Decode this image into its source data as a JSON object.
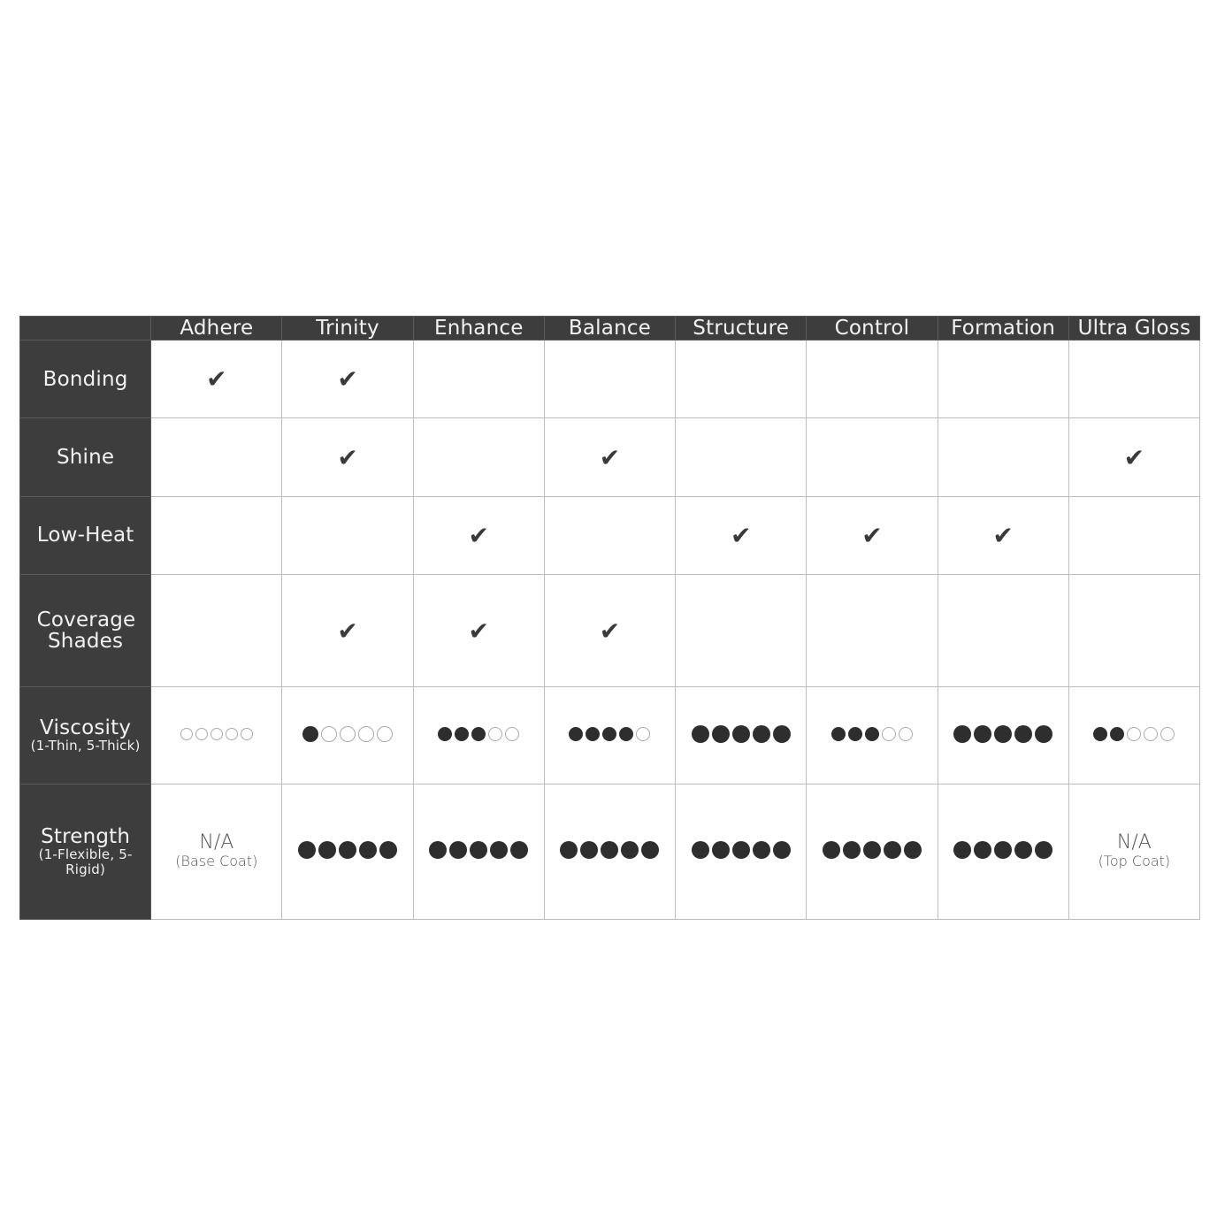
{
  "columns": [
    "Adhere",
    "Trinity",
    "Enhance",
    "Balance",
    "Structure",
    "Control",
    "Formation",
    "Ultra Gloss"
  ],
  "check_icon": "check-icon",
  "colors": {
    "header_bg": "#3d3d3d",
    "dot_filled": "#2e2e2e"
  },
  "rows": [
    {
      "label": "Bonding",
      "sub": "",
      "type": "check",
      "values": [
        true,
        true,
        false,
        false,
        false,
        false,
        false,
        false
      ]
    },
    {
      "label": "Shine",
      "sub": "",
      "type": "check",
      "values": [
        false,
        true,
        false,
        true,
        false,
        false,
        false,
        true
      ]
    },
    {
      "label": "Low-Heat",
      "sub": "",
      "type": "check",
      "values": [
        false,
        false,
        true,
        false,
        true,
        true,
        true,
        false
      ]
    },
    {
      "label": "Coverage Shades",
      "sub": "",
      "type": "check",
      "values": [
        false,
        true,
        true,
        true,
        false,
        false,
        false,
        false
      ]
    },
    {
      "label": "Viscosity",
      "sub": "(1-Thin, 5-Thick)",
      "type": "rating",
      "max": 5,
      "values": [
        0,
        1,
        3,
        4,
        5,
        3,
        5,
        2
      ]
    },
    {
      "label": "Strength",
      "sub": "(1-Flexible, 5-Rigid)",
      "type": "rating",
      "max": 5,
      "values": [
        {
          "text": "N/A",
          "sub": "(Base Coat)"
        },
        5,
        5,
        5,
        5,
        5,
        5,
        {
          "text": "N/A",
          "sub": "(Top Coat)"
        }
      ]
    }
  ]
}
